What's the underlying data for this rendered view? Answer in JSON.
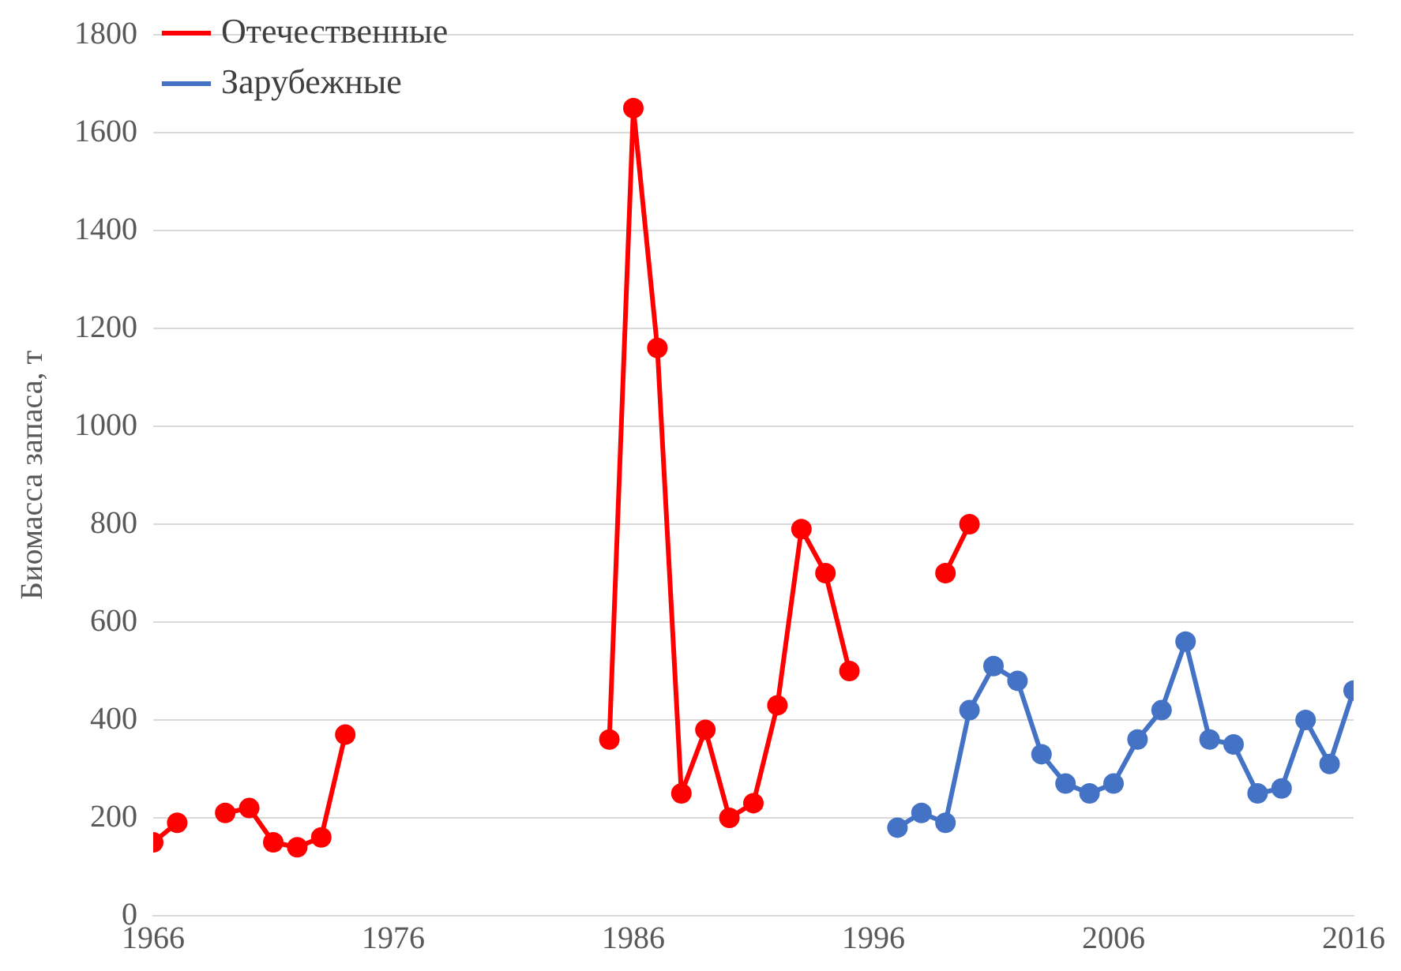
{
  "chart_data": {
    "type": "line",
    "ylabel": "Биомасса запаса, т",
    "xlim": [
      1966,
      2016
    ],
    "xticks": [
      1966,
      1976,
      1986,
      1996,
      2006,
      2016
    ],
    "ylim": [
      0,
      1800
    ],
    "yticks": [
      0,
      200,
      400,
      600,
      800,
      1000,
      1200,
      1400,
      1600,
      1800
    ],
    "grid": "y",
    "legend": "top left",
    "marker": "circle",
    "line_style": "solid",
    "series": [
      {
        "name": "Отечественные",
        "color": "#ff0000",
        "x": [
          1966,
          1967,
          1968,
          1969,
          1970,
          1971,
          1972,
          1973,
          1974,
          1975,
          1984,
          1985,
          1986,
          1987,
          1988,
          1989,
          1990,
          1991,
          1992,
          1993,
          1994,
          1995,
          1996,
          1999,
          2000
        ],
        "values": [
          150,
          190,
          null,
          210,
          220,
          150,
          140,
          160,
          370,
          null,
          null,
          360,
          1650,
          1160,
          250,
          380,
          200,
          230,
          430,
          790,
          700,
          500,
          null,
          700,
          800
        ]
      },
      {
        "name": "Зарубежные",
        "color": "#4472c4",
        "x": [
          1997,
          1998,
          1999,
          2000,
          2001,
          2002,
          2003,
          2004,
          2005,
          2006,
          2007,
          2008,
          2009,
          2010,
          2011,
          2012,
          2013,
          2014,
          2015,
          2016
        ],
        "values": [
          180,
          210,
          190,
          420,
          510,
          480,
          330,
          270,
          250,
          270,
          360,
          420,
          560,
          360,
          350,
          250,
          260,
          400,
          310,
          460
        ]
      }
    ]
  }
}
